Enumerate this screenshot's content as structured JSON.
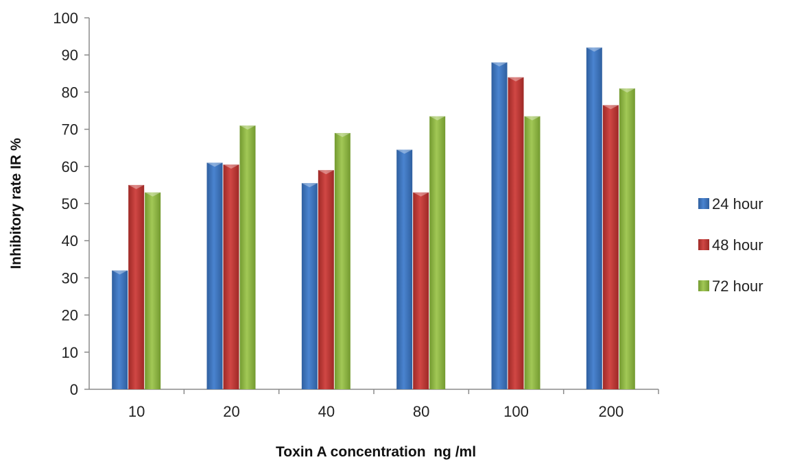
{
  "chart_data": {
    "type": "bar",
    "title": "",
    "xlabel": "Toxin A concentration  ng /ml",
    "ylabel": "Inhibitory rate IR %",
    "ylim": [
      0,
      100
    ],
    "yticks": [
      "0",
      "10",
      "20",
      "30",
      "40",
      "50",
      "60",
      "70",
      "80",
      "90",
      "100"
    ],
    "categories": [
      "10",
      "20",
      "40",
      "80",
      "100",
      "200"
    ],
    "series": [
      {
        "name": "24 hour",
        "color": "#3f76c4",
        "values": [
          32,
          61,
          55.5,
          64.5,
          88,
          92
        ]
      },
      {
        "name": "48 hour",
        "color": "#c23b37",
        "values": [
          55,
          60.5,
          59,
          53,
          84,
          76.5
        ]
      },
      {
        "name": "72 hour",
        "color": "#93bb45",
        "values": [
          53,
          71,
          69,
          73.5,
          73.5,
          81
        ]
      }
    ],
    "grid": false,
    "legend_position": "right"
  }
}
